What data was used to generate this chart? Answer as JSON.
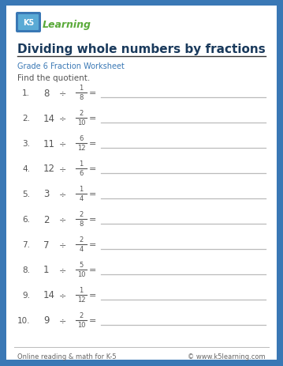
{
  "title": "Dividing whole numbers by fractions",
  "subtitle": "Grade 6 Fraction Worksheet",
  "instruction": "Find the quotient.",
  "problems": [
    {
      "num": 1,
      "whole": "8",
      "frac_n": "1",
      "frac_d": "8"
    },
    {
      "num": 2,
      "whole": "14",
      "frac_n": "2",
      "frac_d": "10"
    },
    {
      "num": 3,
      "whole": "11",
      "frac_n": "6",
      "frac_d": "12"
    },
    {
      "num": 4,
      "whole": "12",
      "frac_n": "1",
      "frac_d": "6"
    },
    {
      "num": 5,
      "whole": "3",
      "frac_n": "1",
      "frac_d": "4"
    },
    {
      "num": 6,
      "whole": "2",
      "frac_n": "2",
      "frac_d": "8"
    },
    {
      "num": 7,
      "whole": "7",
      "frac_n": "2",
      "frac_d": "4"
    },
    {
      "num": 8,
      "whole": "1",
      "frac_n": "5",
      "frac_d": "10"
    },
    {
      "num": 9,
      "whole": "14",
      "frac_n": "1",
      "frac_d": "12"
    },
    {
      "num": 10,
      "whole": "9",
      "frac_n": "2",
      "frac_d": "10"
    }
  ],
  "footer_left": "Online reading & math for K-5",
  "footer_right": "© www.k5learning.com",
  "bg_color": "#3a78b5",
  "page_color": "#ffffff",
  "border_color": "#3a78b5",
  "title_color": "#1a3a5c",
  "subtitle_color": "#3a78b5",
  "text_color": "#555555",
  "line_color": "#bbbbbb",
  "header_line_color": "#333333",
  "footer_text_color": "#666666",
  "k5_box_color": "#3a78b5",
  "learning_color": "#5aaa3a"
}
